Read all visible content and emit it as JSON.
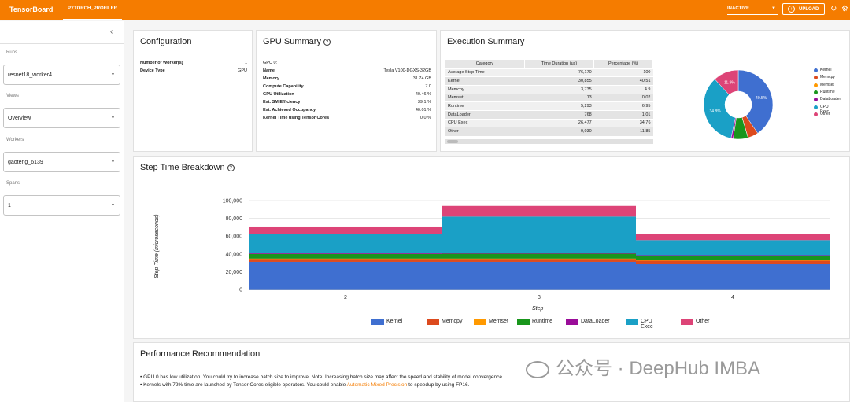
{
  "app": {
    "title": "TensorBoard",
    "tab": "PYTORCH_PROFILER",
    "status": "INACTIVE",
    "upload": "UPLOAD"
  },
  "colors": {
    "accent": "#f57c00",
    "kernel": "#3f6fd0",
    "memcpy": "#dc4a1e",
    "memset": "#ff9900",
    "runtime": "#19961c",
    "dataloader": "#9a0d99",
    "cpu_exec": "#1aa0c6",
    "other": "#dd4477"
  },
  "sidebar": {
    "runs_label": "Runs",
    "runs_value": "resnet18_worker4",
    "views_label": "Views",
    "views_value": "Overview",
    "workers_label": "Workers",
    "workers_value": "gaoteng_6139",
    "spans_label": "Spans",
    "spans_value": "1"
  },
  "configuration": {
    "title": "Configuration",
    "rows": [
      {
        "key": "Number of Worker(s)",
        "value": "1"
      },
      {
        "key": "Device Type",
        "value": "GPU"
      }
    ]
  },
  "gpu_summary": {
    "title": "GPU Summary",
    "gpu_label": "GPU 0:",
    "rows": [
      {
        "key": "Name",
        "value": "Tesla V100-DGXS-32GB"
      },
      {
        "key": "Memory",
        "value": "31.74 GB"
      },
      {
        "key": "Compute Capability",
        "value": "7.0"
      },
      {
        "key": "GPU Utilization",
        "value": "40.46 %"
      },
      {
        "key": "Est. SM Efficiency",
        "value": "39.1 %"
      },
      {
        "key": "Est. Achieved Occupancy",
        "value": "40.01 %"
      },
      {
        "key": "Kernel Time using Tensor Cores",
        "value": "0.0 %"
      }
    ]
  },
  "execution_summary": {
    "title": "Execution Summary",
    "headers": [
      "Category",
      "Time Duration (us)",
      "Percentage (%)"
    ],
    "rows": [
      {
        "category": "Average Step Time",
        "duration": "76,170",
        "percentage": "100"
      },
      {
        "category": "Kernel",
        "duration": "30,855",
        "percentage": "40.51"
      },
      {
        "category": "Memcpy",
        "duration": "3,735",
        "percentage": "4.9"
      },
      {
        "category": "Memset",
        "duration": "13",
        "percentage": "0.02"
      },
      {
        "category": "Runtime",
        "duration": "5,293",
        "percentage": "6.95"
      },
      {
        "category": "DataLoader",
        "duration": "768",
        "percentage": "1.01"
      },
      {
        "category": "CPU Exec",
        "duration": "26,477",
        "percentage": "34.76"
      },
      {
        "category": "Other",
        "duration": "9,030",
        "percentage": "11.85"
      }
    ],
    "pie_labels": {
      "kernel": "40.5%",
      "cpu_exec": "34.8%",
      "other": "11.9%"
    },
    "legend": [
      "Kernel",
      "Memcpy",
      "Memset",
      "Runtime",
      "DataLoader",
      "CPU Exec",
      "Other"
    ]
  },
  "step_time": {
    "title": "Step Time Breakdown",
    "ylabel": "Step Time (microseconds)",
    "xlabel": "Step",
    "yticks": [
      "100,000",
      "80,000",
      "60,000",
      "40,000",
      "20,000",
      "0"
    ],
    "xticks": [
      "2",
      "3",
      "4"
    ],
    "legend": [
      "Kernel",
      "Memcpy",
      "Memset",
      "Runtime",
      "DataLoader",
      "CPU Exec",
      "Other"
    ]
  },
  "chart_data": {
    "type": "area",
    "title": "Step Time Breakdown",
    "xlabel": "Step",
    "ylabel": "Step Time (microseconds)",
    "ylim": [
      0,
      100000
    ],
    "categories": [
      "2",
      "3",
      "4"
    ],
    "series": [
      {
        "name": "Kernel",
        "color": "#3f6fd0",
        "values": [
          31000,
          31000,
          29000
        ]
      },
      {
        "name": "Memcpy",
        "color": "#dc4a1e",
        "values": [
          3700,
          3700,
          3800
        ]
      },
      {
        "name": "Memset",
        "color": "#ff9900",
        "values": [
          13,
          13,
          13
        ]
      },
      {
        "name": "Runtime",
        "color": "#19961c",
        "values": [
          5300,
          5500,
          5000
        ]
      },
      {
        "name": "DataLoader",
        "color": "#9a0d99",
        "values": [
          800,
          800,
          700
        ]
      },
      {
        "name": "CPU Exec",
        "color": "#1aa0c6",
        "values": [
          22000,
          41000,
          17000
        ]
      },
      {
        "name": "Other",
        "color": "#dd4477",
        "values": [
          8000,
          12000,
          6500
        ]
      }
    ]
  },
  "performance": {
    "title": "Performance Recommendation",
    "bullet1": "GPU 0 has low utilization. You could try to increase batch size to improve. Note: Increasing batch size may affect the speed and stability of model convergence.",
    "bullet2_pre": "Kernels with 72% time are launched by Tensor Cores eligible operators. You could enable ",
    "bullet2_link": "Automatic Mixed Precision",
    "bullet2_post": " to speedup by using FP16."
  },
  "watermark": "公众号 · DeepHub IMBA"
}
